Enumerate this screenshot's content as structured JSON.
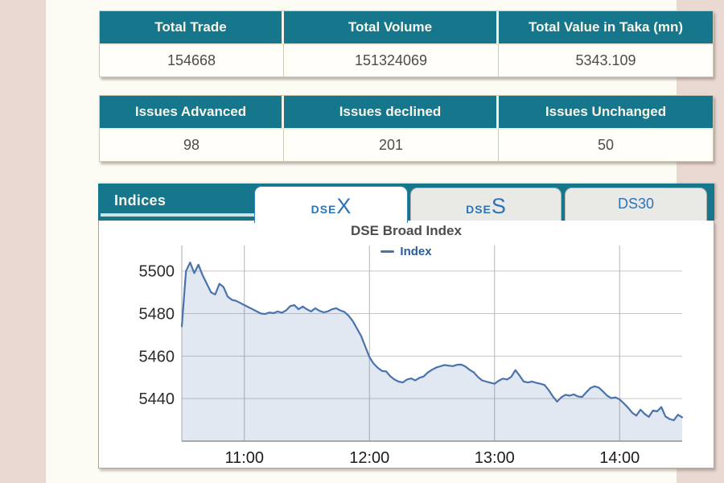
{
  "colors": {
    "teal_header": "#16778c",
    "tab_text_blue": "#2c74b8",
    "line_color": "#4873ac",
    "area_fill": "#dfe7f2",
    "page_background": "#ead9d3",
    "panel_background": "#ffffff"
  },
  "total_table": {
    "headers": [
      "Total Trade",
      "Total Volume",
      "Total Value in Taka (mn)"
    ],
    "values": [
      "154668",
      "151324069",
      "5343.109"
    ]
  },
  "issues_table": {
    "headers": [
      "Issues Advanced",
      "Issues declined",
      "Issues Unchanged"
    ],
    "values": [
      "98",
      "201",
      "50"
    ]
  },
  "indices": {
    "label": "Indices",
    "tabs": [
      {
        "id": "DSEX",
        "prefix": "DSE",
        "suffix": "X",
        "active": true
      },
      {
        "id": "DSES",
        "prefix": "DSE",
        "suffix": "S",
        "active": false
      },
      {
        "id": "DS30",
        "label": "DS30",
        "active": false
      }
    ]
  },
  "chart_data": {
    "type": "area",
    "title": "DSE Broad Index",
    "series_name": "Index",
    "legend_position": "top",
    "grid": true,
    "yticks": [
      5500,
      5480,
      5460,
      5440
    ],
    "ylim": [
      5420,
      5512
    ],
    "xticks": [
      {
        "minute": 660,
        "label": "11:00"
      },
      {
        "minute": 720,
        "label": "12:00"
      },
      {
        "minute": 780,
        "label": "13:00"
      },
      {
        "minute": 840,
        "label": "14:00"
      }
    ],
    "xlim_minutes": [
      630,
      870
    ],
    "x_start_label": "10:30",
    "x_end_label": "14:30",
    "x_start_minute": 630,
    "x_step_minute": 2,
    "values": [
      5474,
      5500,
      5504,
      5499,
      5503,
      5498,
      5494,
      5490,
      5489,
      5494,
      5492.5,
      5488,
      5486.5,
      5486,
      5485,
      5484,
      5483,
      5482,
      5481,
      5480,
      5479.8,
      5480.5,
      5480.2,
      5481,
      5480.4,
      5481.5,
      5483.5,
      5484,
      5482,
      5483.3,
      5482,
      5481,
      5482.5,
      5481.3,
      5480.6,
      5481,
      5482,
      5482.5,
      5481.5,
      5480.8,
      5479,
      5476.5,
      5473,
      5469.5,
      5464.5,
      5459.5,
      5456.5,
      5454.5,
      5453,
      5452.8,
      5450.5,
      5449,
      5448,
      5447.6,
      5449,
      5449.5,
      5448.6,
      5449.8,
      5450.4,
      5452.3,
      5453.6,
      5454.6,
      5455.2,
      5455.8,
      5455.5,
      5455.3,
      5455.9,
      5456,
      5455.1,
      5453.6,
      5452.4,
      5450.2,
      5448.6,
      5448,
      5447.5,
      5447,
      5448.4,
      5449.4,
      5449,
      5450.2,
      5453.4,
      5450.8,
      5448,
      5447.6,
      5448,
      5447.4,
      5447,
      5446.4,
      5444,
      5441,
      5438.6,
      5440.6,
      5441.8,
      5441.4,
      5442,
      5441,
      5440.8,
      5443,
      5445,
      5445.8,
      5445.2,
      5443.4,
      5441.4,
      5440.2,
      5440.6,
      5439.6,
      5437.8,
      5435.8,
      5433.4,
      5432,
      5434.8,
      5432.8,
      5431.4,
      5434.4,
      5434,
      5436,
      5431.6,
      5430.4,
      5429.8,
      5432.4,
      5431.2
    ]
  }
}
